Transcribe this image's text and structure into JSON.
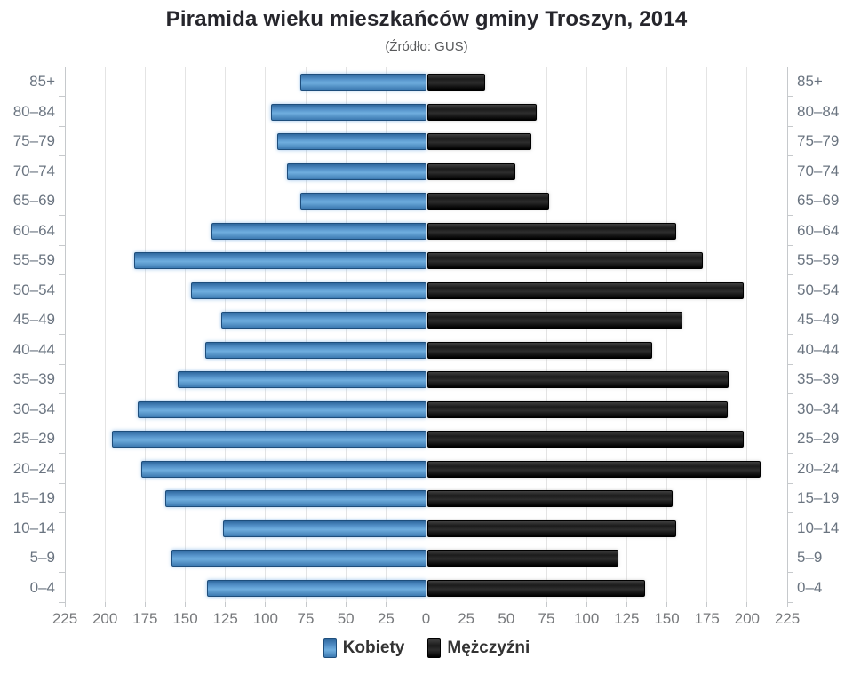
{
  "title": "Piramida wieku mieszkańców gminy Troszyn, 2014",
  "subtitle": "(Źródło: GUS)",
  "legend": {
    "women": "Kobiety",
    "men": "Mężczyźni"
  },
  "colors": {
    "women_bar": "#4a87be",
    "men_bar": "#141414",
    "gridline": "#e4e4e4",
    "axis": "#c6c9cc",
    "age_label": "#6a7480",
    "tick_label": "#77797c",
    "title": "#26262c",
    "subtitle": "#58595b"
  },
  "chart_data": {
    "type": "bar",
    "variant": "population-pyramid",
    "title": "Piramida wieku mieszkańców gminy Troszyn, 2014",
    "subtitle": "(Źródło: GUS)",
    "categories": [
      "85+",
      "80–84",
      "75–79",
      "70–74",
      "65–69",
      "60–64",
      "55–59",
      "50–54",
      "45–49",
      "40–44",
      "35–39",
      "30–34",
      "25–29",
      "20–24",
      "15–19",
      "10–14",
      "5–9",
      "0–4"
    ],
    "series": [
      {
        "name": "Kobiety",
        "side": "left",
        "values": [
          78,
          96,
          92,
          86,
          78,
          133,
          181,
          146,
          127,
          137,
          154,
          179,
          195,
          177,
          162,
          126,
          158,
          136
        ]
      },
      {
        "name": "Mężczyźni",
        "side": "right",
        "values": [
          35,
          67,
          64,
          54,
          75,
          154,
          171,
          196,
          158,
          139,
          187,
          186,
          196,
          207,
          152,
          154,
          118,
          135
        ]
      }
    ],
    "x_tick_labels": [
      "225",
      "200",
      "175",
      "150",
      "125",
      "100",
      "75",
      "50",
      "25",
      "0",
      "25",
      "50",
      "75",
      "100",
      "125",
      "150",
      "175",
      "200",
      "225"
    ],
    "xlim_each_side": [
      0,
      225
    ],
    "x_tick_step": 25,
    "grid": true,
    "legend_position": "bottom"
  }
}
